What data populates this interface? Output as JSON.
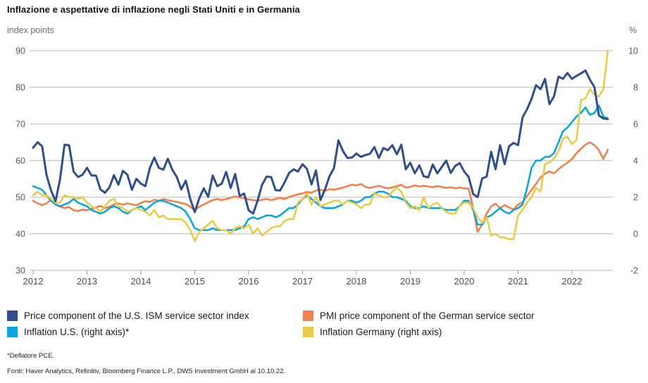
{
  "title": "Inflazione e aspettative di inflazione negli Stati Uniti e in Germania",
  "axes": {
    "left_unit": "index points",
    "right_unit": "%"
  },
  "legend": {
    "items": [
      {
        "label": "Price component of the U.S. ISM service sector index",
        "color": "#2e4f8c"
      },
      {
        "label": "Inflation U.S. (right axis)*",
        "color": "#0aa6dc"
      },
      {
        "label": "PMI price component of the German service sector",
        "color": "#ef814c"
      },
      {
        "label": "Inflation Germany (right axis)",
        "color": "#e8cb4b"
      }
    ]
  },
  "footnotes": {
    "deflator": "*Deflatore PCE.",
    "sources": "Fonti: Haver Analytics, Refinitiv, Bloomberg Finance L.P., DWS Investment GmbH al 10.10.22."
  },
  "colors": {
    "ism_blue": "#2e4f8c",
    "inflation_us_cyan": "#0aa6dc",
    "pmi_orange": "#ef814c",
    "inflation_de_yellow": "#e8cb4b",
    "gridline": "#b4b4b4",
    "axis_text": "#595959"
  },
  "chart_data": {
    "type": "line",
    "frequency": "monthly",
    "x_start_year": 2012,
    "x_end": "2022-09",
    "years": [
      2012,
      2013,
      2014,
      2015,
      2016,
      2017,
      2018,
      2019,
      2020,
      2021,
      2022
    ],
    "grid": "horizontal",
    "legend_position": "bottom",
    "left_axis": {
      "label": "index points",
      "min": 30,
      "max": 90,
      "ticks": [
        90,
        80,
        70,
        60,
        50,
        40,
        30
      ]
    },
    "right_axis": {
      "label": "%",
      "min": -2,
      "max": 10,
      "ticks": [
        10,
        8,
        6,
        4,
        2,
        0,
        -2
      ]
    },
    "series": [
      {
        "name": "Price component of the U.S. ISM service sector index",
        "axis": "left",
        "color": "#2e4f8c",
        "values": [
          63.5,
          65.0,
          63.9,
          56.0,
          51.8,
          48.9,
          54.9,
          64.3,
          64.2,
          57.0,
          55.5,
          56.1,
          58.0,
          55.9,
          55.9,
          52.1,
          51.2,
          52.7,
          56.0,
          53.4,
          57.2,
          56.1,
          52.0,
          55.0,
          53.7,
          53.0,
          58.0,
          60.8,
          58.0,
          57.5,
          60.5,
          57.5,
          55.5,
          52.1,
          54.5,
          49.5,
          45.9,
          49.7,
          52.4,
          50.1,
          55.9,
          53.0,
          53.7,
          56.9,
          52.5,
          56.3,
          50.3,
          51.0,
          46.4,
          45.5,
          49.1,
          53.4,
          55.6,
          55.5,
          51.9,
          51.8,
          54.0,
          56.6,
          57.6,
          57.0,
          59.0,
          57.7,
          53.5,
          57.3,
          49.2,
          52.1,
          55.7,
          57.9,
          65.5,
          62.6,
          60.7,
          60.8,
          61.9,
          61.0,
          61.5,
          61.8,
          63.7,
          60.7,
          63.4,
          62.8,
          64.2,
          61.7,
          64.3,
          57.6,
          59.4,
          56.5,
          58.7,
          55.7,
          55.4,
          58.9,
          56.5,
          58.2,
          60.0,
          56.6,
          58.5,
          59.3,
          57.0,
          55.5,
          50.8,
          50.0,
          55.1,
          55.6,
          62.4,
          57.6,
          64.2,
          59.0,
          63.9,
          64.8,
          64.2,
          71.8,
          74.0,
          76.8,
          80.6,
          79.5,
          82.3,
          75.4,
          77.5,
          82.9,
          82.3,
          83.9,
          82.3,
          83.1,
          83.8,
          84.6,
          82.1,
          80.1,
          72.3,
          71.5,
          71.3
        ]
      },
      {
        "name": "PMI price component of the German service sector",
        "axis": "left",
        "color": "#ef814c",
        "values": [
          49.0,
          48.3,
          47.8,
          48.3,
          49.3,
          48.0,
          47.4,
          47.0,
          47.3,
          46.4,
          46.2,
          46.6,
          46.4,
          46.8,
          47.2,
          47.6,
          47.0,
          47.4,
          48.0,
          48.3,
          47.9,
          48.3,
          48.0,
          47.8,
          48.4,
          48.9,
          48.7,
          49.3,
          49.0,
          49.5,
          49.2,
          48.9,
          48.7,
          48.4,
          48.1,
          47.4,
          46.4,
          47.4,
          48.0,
          48.6,
          49.2,
          49.5,
          49.2,
          49.5,
          49.8,
          50.2,
          49.9,
          49.7,
          49.4,
          49.2,
          49.0,
          49.3,
          49.5,
          49.2,
          49.5,
          49.8,
          49.5,
          50.0,
          50.4,
          50.8,
          51.0,
          51.4,
          51.2,
          51.8,
          52.0,
          51.7,
          52.2,
          52.0,
          52.3,
          52.6,
          53.0,
          53.4,
          53.2,
          53.6,
          52.8,
          52.5,
          52.8,
          53.1,
          52.7,
          52.4,
          52.7,
          53.0,
          53.4,
          52.6,
          52.8,
          53.2,
          52.9,
          53.1,
          52.9,
          52.7,
          53.0,
          52.8,
          52.5,
          52.7,
          52.4,
          52.6,
          52.4,
          52.3,
          47.0,
          40.5,
          42.5,
          45.5,
          47.5,
          48.2,
          47.0,
          47.8,
          47.2,
          46.6,
          48.0,
          48.6,
          50.3,
          52.0,
          53.6,
          55.4,
          56.4,
          57.0,
          56.5,
          57.6,
          58.6,
          59.4,
          60.4,
          62.0,
          63.2,
          64.3,
          65.0,
          64.2,
          62.8,
          60.4,
          63.0
        ]
      },
      {
        "name": "Inflation U.S. (right axis)*",
        "axis": "right",
        "color": "#0aa6dc",
        "values": [
          2.6,
          2.5,
          2.4,
          2.1,
          1.8,
          1.6,
          1.5,
          1.6,
          1.7,
          1.9,
          1.7,
          1.6,
          1.5,
          1.3,
          1.2,
          1.1,
          1.2,
          1.4,
          1.5,
          1.4,
          1.2,
          1.1,
          1.3,
          1.4,
          1.5,
          1.3,
          1.5,
          1.7,
          1.8,
          1.8,
          1.7,
          1.6,
          1.5,
          1.4,
          1.2,
          0.8,
          0.3,
          0.2,
          0.2,
          0.2,
          0.3,
          0.2,
          0.2,
          0.2,
          0.2,
          0.2,
          0.3,
          0.4,
          0.8,
          0.9,
          0.8,
          0.9,
          1.0,
          1.0,
          0.9,
          1.0,
          1.2,
          1.4,
          1.4,
          1.6,
          1.9,
          2.1,
          1.9,
          1.7,
          1.5,
          1.4,
          1.4,
          1.4,
          1.5,
          1.6,
          1.8,
          1.8,
          1.7,
          1.8,
          2.0,
          2.0,
          2.2,
          2.3,
          2.3,
          2.2,
          2.0,
          2.0,
          1.9,
          1.8,
          1.5,
          1.4,
          1.4,
          1.5,
          1.4,
          1.4,
          1.4,
          1.4,
          1.3,
          1.3,
          1.3,
          1.5,
          1.8,
          1.8,
          1.3,
          0.5,
          0.5,
          0.9,
          1.0,
          1.2,
          1.4,
          1.2,
          1.1,
          1.3,
          1.4,
          1.6,
          2.5,
          3.6,
          4.0,
          4.0,
          4.2,
          4.2,
          4.4,
          5.0,
          5.6,
          5.8,
          6.1,
          6.4,
          6.6,
          6.9,
          6.5,
          6.6,
          7.0,
          6.4,
          6.3
        ]
      },
      {
        "name": "Inflation Germany (right axis)",
        "axis": "right",
        "color": "#e8cb4b",
        "values": [
          2.1,
          2.3,
          2.1,
          2.1,
          1.9,
          1.7,
          1.7,
          2.1,
          2.0,
          2.0,
          1.9,
          2.0,
          1.7,
          1.5,
          1.4,
          1.2,
          1.5,
          1.8,
          1.9,
          1.5,
          1.4,
          1.2,
          1.3,
          1.4,
          1.3,
          1.2,
          1.0,
          1.3,
          0.9,
          1.0,
          0.8,
          0.8,
          0.8,
          0.8,
          0.6,
          0.2,
          -0.4,
          0.1,
          0.3,
          0.5,
          0.7,
          0.3,
          0.2,
          0.2,
          0.0,
          0.3,
          0.4,
          0.3,
          0.5,
          0.0,
          0.3,
          -0.1,
          0.1,
          0.3,
          0.4,
          0.4,
          0.7,
          0.8,
          0.8,
          1.7,
          1.9,
          2.2,
          1.6,
          2.0,
          1.5,
          1.6,
          1.7,
          1.8,
          1.8,
          1.6,
          1.8,
          1.7,
          1.6,
          1.4,
          1.6,
          1.6,
          2.2,
          2.1,
          2.0,
          2.0,
          2.3,
          2.5,
          2.3,
          1.7,
          1.4,
          1.5,
          1.3,
          2.0,
          1.4,
          1.6,
          1.7,
          1.4,
          1.2,
          1.1,
          1.1,
          1.5,
          1.7,
          1.7,
          1.4,
          0.9,
          0.6,
          0.9,
          -0.1,
          0.0,
          -0.2,
          -0.2,
          -0.3,
          -0.3,
          1.0,
          1.3,
          1.7,
          2.0,
          2.5,
          2.3,
          3.8,
          3.9,
          4.1,
          4.5,
          5.2,
          5.3,
          4.9,
          5.1,
          7.3,
          7.4,
          7.9,
          7.6,
          7.5,
          7.9,
          10.0
        ]
      }
    ]
  }
}
